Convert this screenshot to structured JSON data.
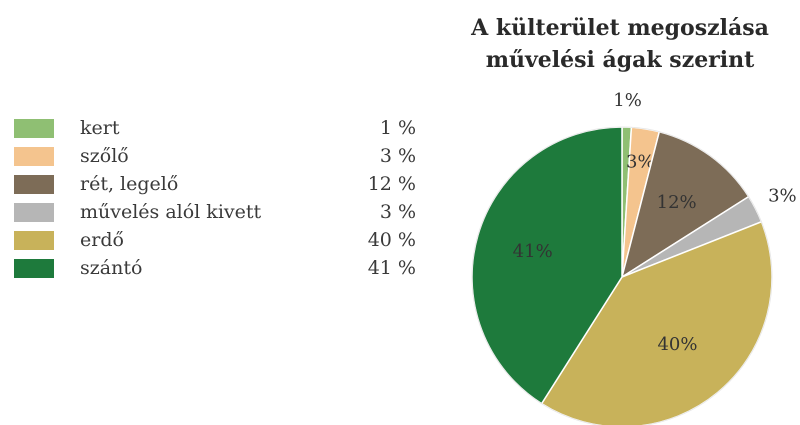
{
  "chart_data": {
    "type": "pie",
    "title_line1": "A külterület megoszlása",
    "title_line2": "művelési ágak szerint",
    "categories": [
      "kert",
      "szőlő",
      "rét, legelő",
      "művelés alól kivett",
      "erdő",
      "szántó"
    ],
    "values": [
      1,
      3,
      12,
      3,
      40,
      41
    ],
    "value_labels": [
      "1 %",
      "3 %",
      "12 %",
      "3 %",
      "40 %",
      "41 %"
    ],
    "slice_labels": [
      "1%",
      "3%",
      "12%",
      "3%",
      "40%",
      "41%"
    ],
    "colors": [
      "#8fbf73",
      "#f4c48e",
      "#7d6c57",
      "#b6b6b6",
      "#c8b25a",
      "#1e7a3c"
    ],
    "legend_placement": "left"
  }
}
